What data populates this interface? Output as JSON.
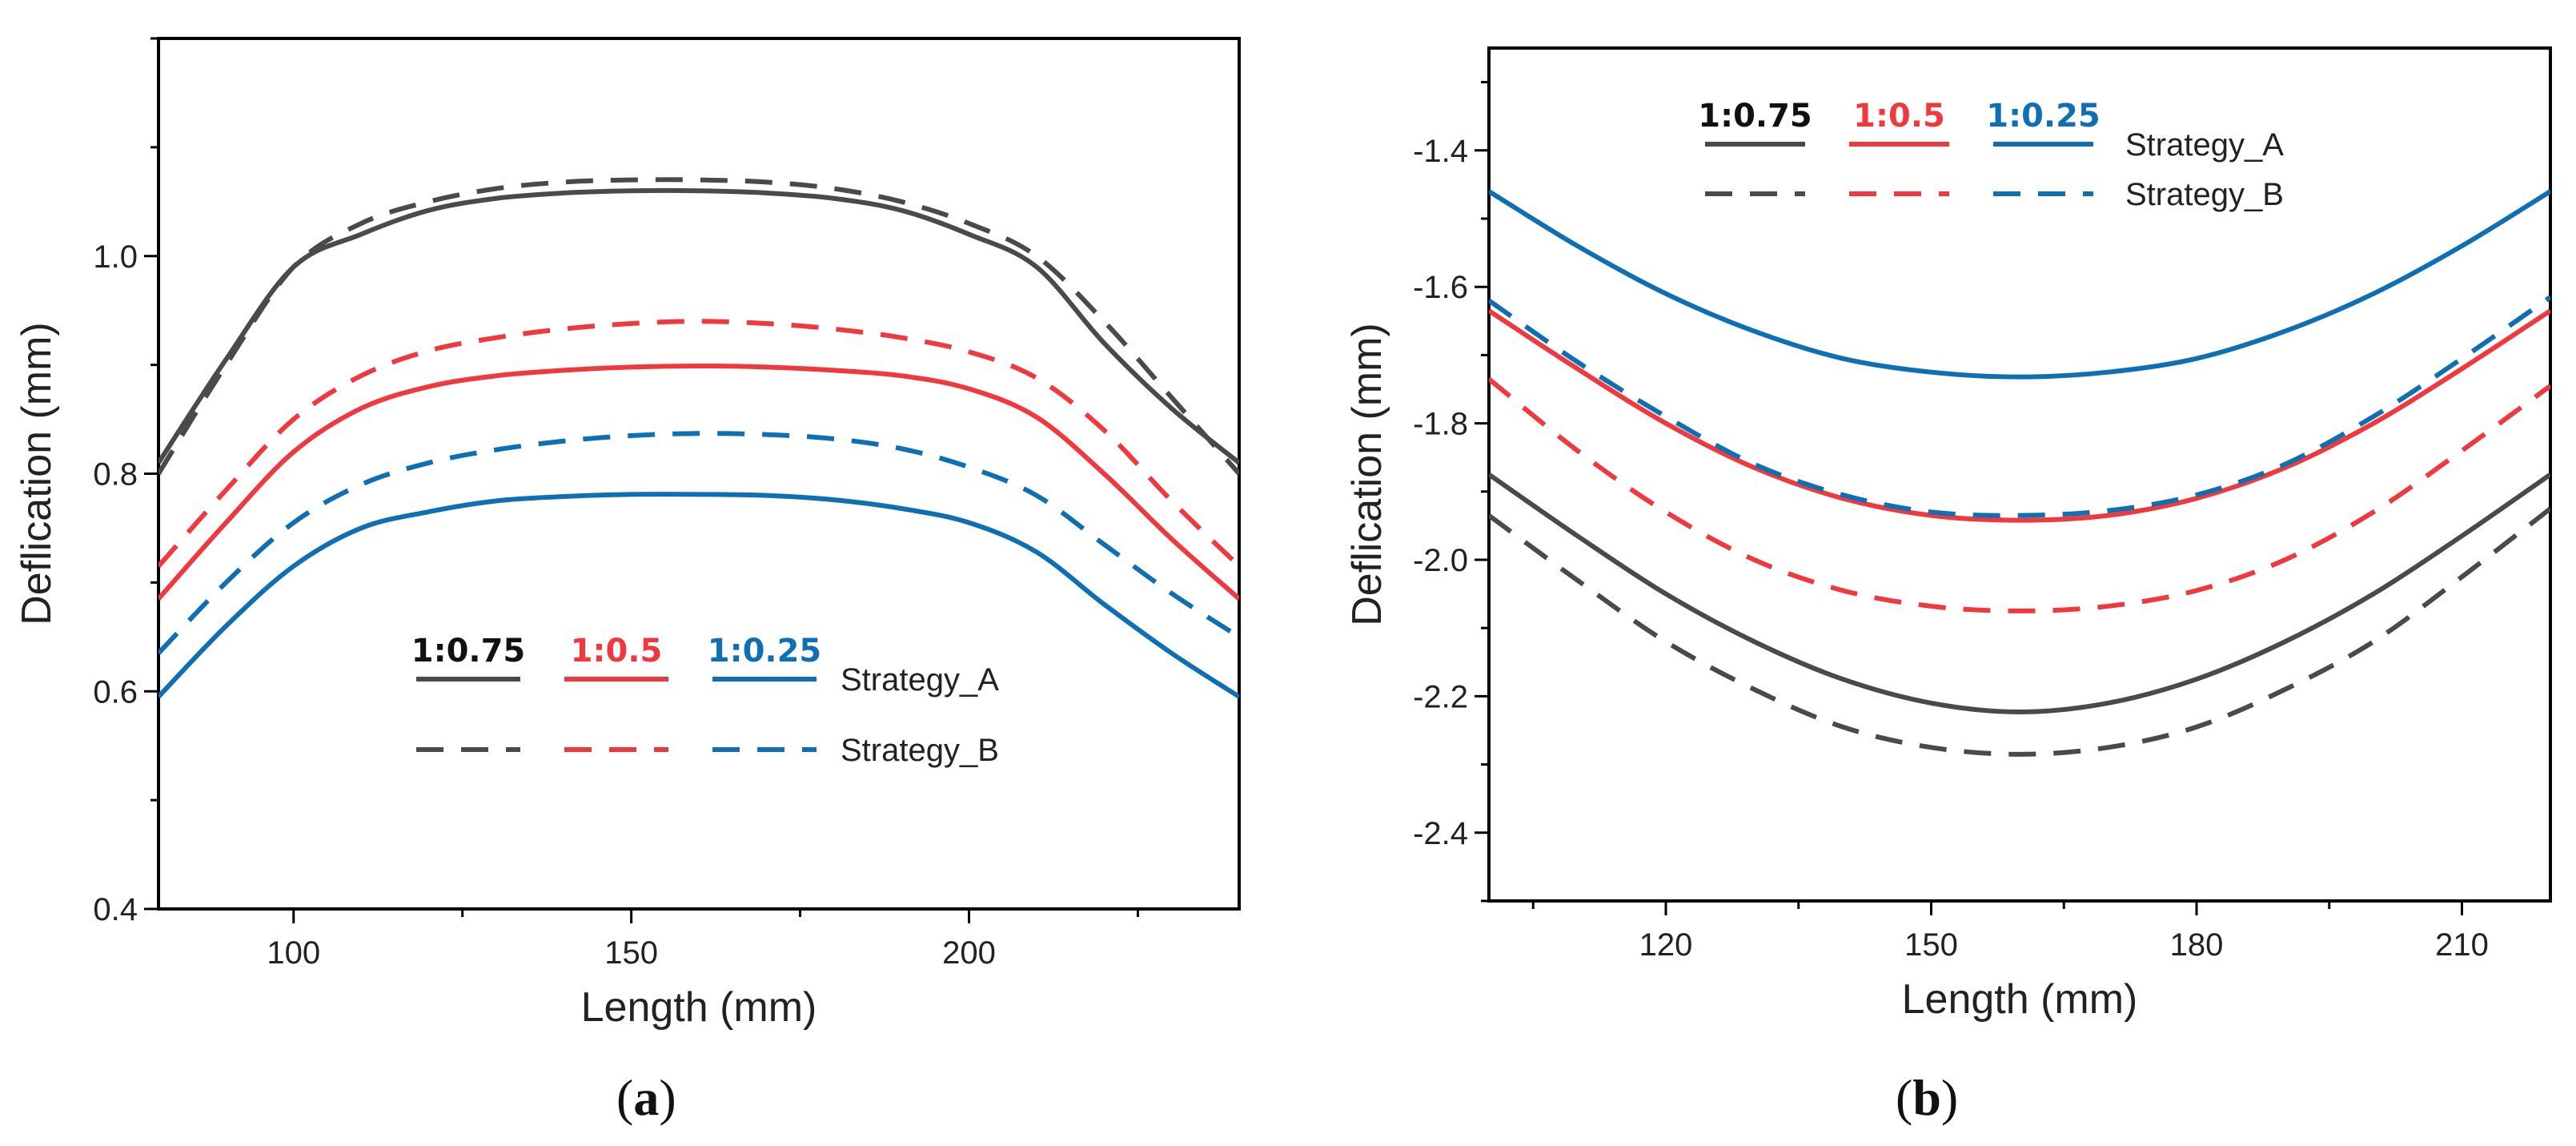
{
  "colors": {
    "ratio_1_0_75": "#4a4a4a",
    "ratio_1_0_5": "#f0393e",
    "ratio_1_0_25": "#0f6fb3",
    "axis": "#000000",
    "text": "#222222"
  },
  "chart_data": [
    {
      "type": "line",
      "panel_label": {
        "open": "(",
        "letter": "a",
        "close": ")"
      },
      "xlabel": "Length (mm)",
      "ylabel": "Deflication (mm)",
      "xlim": [
        80,
        240
      ],
      "ylim": [
        0.4,
        1.2
      ],
      "x_ticks": [
        100,
        150,
        200
      ],
      "x_tick_labels": [
        "100",
        "150",
        "200"
      ],
      "y_ticks": [
        0.4,
        0.6,
        0.8,
        1.0
      ],
      "y_tick_labels": [
        "0.4",
        "0.6",
        "0.8",
        "1.0"
      ],
      "grid": false,
      "legend": {
        "placement": "bottom-center",
        "ratios": [
          "1:0.75",
          "1:0.5",
          "1:0.25"
        ],
        "strategies": [
          "Strategy_A",
          "Strategy_B"
        ]
      },
      "x": [
        80,
        90,
        100,
        110,
        120,
        130,
        140,
        150,
        160,
        170,
        180,
        190,
        200,
        210,
        220,
        230,
        240
      ],
      "series": [
        {
          "ratio": "1:0.75",
          "strategy": "Strategy_A",
          "color": "#4a4a4a",
          "style": "solid",
          "values": [
            0.81,
            0.905,
            0.99,
            1.02,
            1.042,
            1.053,
            1.058,
            1.06,
            1.06,
            1.058,
            1.053,
            1.042,
            1.02,
            0.99,
            0.92,
            0.86,
            0.81
          ]
        },
        {
          "ratio": "1:0.75",
          "strategy": "Strategy_B",
          "color": "#4a4a4a",
          "style": "dashed",
          "values": [
            0.8,
            0.9,
            0.99,
            1.03,
            1.05,
            1.062,
            1.068,
            1.07,
            1.07,
            1.068,
            1.062,
            1.05,
            1.03,
            1.0,
            0.94,
            0.87,
            0.8
          ]
        },
        {
          "ratio": "1:0.5",
          "strategy": "Strategy_A",
          "color": "#f0393e",
          "style": "solid",
          "values": [
            0.685,
            0.755,
            0.82,
            0.86,
            0.88,
            0.89,
            0.895,
            0.898,
            0.899,
            0.898,
            0.895,
            0.89,
            0.878,
            0.852,
            0.8,
            0.74,
            0.685
          ]
        },
        {
          "ratio": "1:0.5",
          "strategy": "Strategy_B",
          "color": "#f0393e",
          "style": "dashed",
          "values": [
            0.715,
            0.785,
            0.85,
            0.89,
            0.913,
            0.925,
            0.933,
            0.938,
            0.94,
            0.938,
            0.933,
            0.925,
            0.912,
            0.888,
            0.84,
            0.775,
            0.715
          ]
        },
        {
          "ratio": "1:0.25",
          "strategy": "Strategy_A",
          "color": "#0f6fb3",
          "style": "solid",
          "values": [
            0.595,
            0.66,
            0.715,
            0.75,
            0.765,
            0.775,
            0.779,
            0.781,
            0.781,
            0.78,
            0.776,
            0.768,
            0.755,
            0.728,
            0.68,
            0.635,
            0.595
          ]
        },
        {
          "ratio": "1:0.25",
          "strategy": "Strategy_B",
          "color": "#0f6fb3",
          "style": "dashed",
          "values": [
            0.635,
            0.7,
            0.755,
            0.79,
            0.81,
            0.822,
            0.83,
            0.835,
            0.837,
            0.836,
            0.832,
            0.823,
            0.806,
            0.78,
            0.735,
            0.69,
            0.65
          ]
        }
      ]
    },
    {
      "type": "line",
      "panel_label": {
        "open": "(",
        "letter": "b",
        "close": ")"
      },
      "xlabel": "Length (mm)",
      "ylabel": "Deflication (mm)",
      "xlim": [
        100,
        220
      ],
      "ylim": [
        -2.5,
        -1.25
      ],
      "x_ticks": [
        120,
        150,
        180,
        210
      ],
      "x_tick_labels": [
        "120",
        "150",
        "180",
        "210"
      ],
      "y_ticks": [
        -2.4,
        -2.2,
        -2.0,
        -1.8,
        -1.6,
        -1.4
      ],
      "y_tick_labels": [
        "-2.4",
        "-2.2",
        "-2.0",
        "-1.8",
        "-1.6",
        "-1.4"
      ],
      "grid": false,
      "legend": {
        "placement": "top-center",
        "ratios": [
          "1:0.75",
          "1:0.5",
          "1:0.25"
        ],
        "strategies": [
          "Strategy_A",
          "Strategy_B"
        ]
      },
      "x": [
        100,
        110,
        120,
        130,
        140,
        150,
        160,
        170,
        180,
        190,
        200,
        210,
        220
      ],
      "series": [
        {
          "ratio": "1:0.75",
          "strategy": "Strategy_A",
          "color": "#4a4a4a",
          "style": "solid",
          "values": [
            -1.875,
            -1.965,
            -2.05,
            -2.12,
            -2.175,
            -2.21,
            -2.223,
            -2.21,
            -2.175,
            -2.12,
            -2.05,
            -1.965,
            -1.875
          ]
        },
        {
          "ratio": "1:0.75",
          "strategy": "Strategy_B",
          "color": "#4a4a4a",
          "style": "dashed",
          "values": [
            -1.935,
            -2.03,
            -2.12,
            -2.19,
            -2.245,
            -2.275,
            -2.285,
            -2.275,
            -2.245,
            -2.19,
            -2.12,
            -2.025,
            -1.925
          ]
        },
        {
          "ratio": "1:0.5",
          "strategy": "Strategy_A",
          "color": "#f0393e",
          "style": "solid",
          "values": [
            -1.635,
            -1.72,
            -1.8,
            -1.865,
            -1.91,
            -1.935,
            -1.942,
            -1.935,
            -1.91,
            -1.865,
            -1.8,
            -1.72,
            -1.635
          ]
        },
        {
          "ratio": "1:0.5",
          "strategy": "Strategy_B",
          "color": "#f0393e",
          "style": "dashed",
          "values": [
            -1.735,
            -1.84,
            -1.93,
            -2.0,
            -2.045,
            -2.068,
            -2.075,
            -2.068,
            -2.045,
            -2.0,
            -1.93,
            -1.84,
            -1.745
          ]
        },
        {
          "ratio": "1:0.25",
          "strategy": "Strategy_A",
          "color": "#0f6fb3",
          "style": "solid",
          "values": [
            -1.46,
            -1.54,
            -1.61,
            -1.665,
            -1.705,
            -1.725,
            -1.732,
            -1.725,
            -1.705,
            -1.665,
            -1.61,
            -1.54,
            -1.46
          ]
        },
        {
          "ratio": "1:0.25",
          "strategy": "Strategy_B",
          "color": "#0f6fb3",
          "style": "dashed",
          "values": [
            -1.62,
            -1.71,
            -1.79,
            -1.86,
            -1.905,
            -1.93,
            -1.935,
            -1.928,
            -1.905,
            -1.86,
            -1.79,
            -1.705,
            -1.615
          ]
        }
      ]
    }
  ]
}
